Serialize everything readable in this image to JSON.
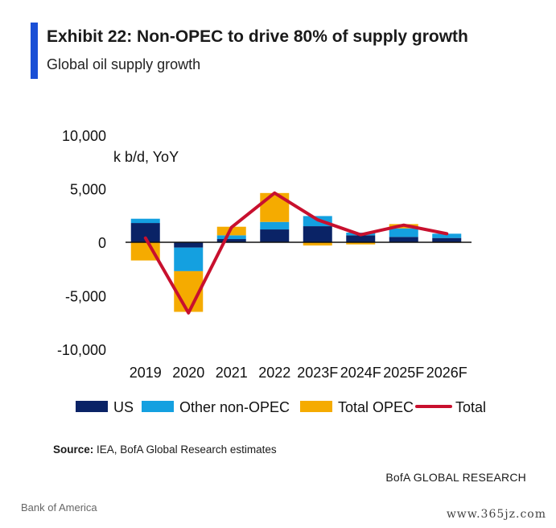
{
  "header": {
    "title": "Exhibit 22: Non-OPEC to drive 80% of supply growth",
    "subtitle": "Global oil supply growth"
  },
  "chart_data": {
    "type": "bar",
    "stacked": true,
    "unit_label": "k b/d, YoY",
    "categories": [
      "2019",
      "2020",
      "2021",
      "2022",
      "2023F",
      "2024F",
      "2025F",
      "2026F"
    ],
    "y_ticks": [
      "10,000",
      "5,000",
      "0",
      "-5,000",
      "-10,000"
    ],
    "ylim": [
      -10000,
      10000
    ],
    "grid": false,
    "legend_position": "bottom",
    "series": [
      {
        "name": "US",
        "kind": "bar",
        "color": "#0a2366",
        "values": [
          1800,
          -500,
          300,
          1200,
          1500,
          650,
          500,
          400
        ]
      },
      {
        "name": "Other non-OPEC",
        "kind": "bar",
        "color": "#14a0e0",
        "values": [
          400,
          -2200,
          350,
          700,
          950,
          250,
          800,
          400
        ]
      },
      {
        "name": "Total OPEC",
        "kind": "bar",
        "color": "#f5ab00",
        "values": [
          -1700,
          -3800,
          800,
          2700,
          -300,
          -200,
          400,
          -50
        ]
      },
      {
        "name": "Total",
        "kind": "line",
        "color": "#c8102e",
        "values": [
          400,
          -6600,
          1400,
          4600,
          2100,
          700,
          1600,
          800
        ]
      }
    ]
  },
  "footer": {
    "source_label": "Source:",
    "source_text": " IEA, BofA Global Research estimates",
    "credit": "BofA GLOBAL RESEARCH",
    "company": "Bank of America",
    "watermark": "www.365jz.com"
  }
}
